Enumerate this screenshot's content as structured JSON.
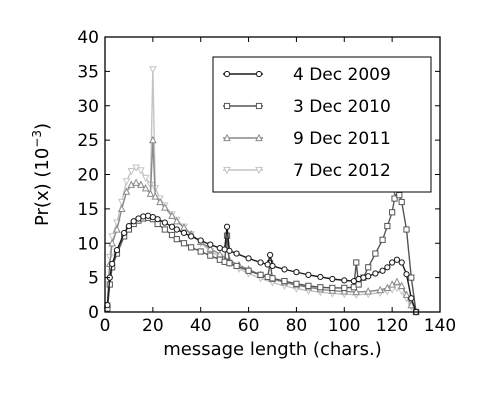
{
  "chart_data": {
    "type": "line",
    "xlabel": "message length (chars.)",
    "ylabel": "Pr(x) (10",
    "ylabel_exp": "−3",
    "xlim": [
      0,
      140
    ],
    "ylim": [
      0,
      40
    ],
    "xticks": [
      0,
      20,
      40,
      60,
      80,
      100,
      120,
      140
    ],
    "yticks": [
      0,
      5,
      10,
      15,
      20,
      25,
      30,
      35,
      40
    ],
    "grid": false,
    "legend_position": "top-right",
    "series": [
      {
        "name": "4 Dec 2009",
        "color": "#1a1a1a",
        "marker": "circle",
        "x": [
          1,
          2,
          3,
          5,
          8,
          10,
          12,
          14,
          16,
          18,
          20,
          22,
          25,
          28,
          30,
          33,
          36,
          40,
          44,
          48,
          50,
          51,
          52,
          55,
          60,
          65,
          68,
          69,
          70,
          75,
          80,
          85,
          90,
          95,
          100,
          104,
          106,
          108,
          110,
          113,
          116,
          118,
          120,
          122,
          124,
          126,
          128,
          130
        ],
        "y": [
          1,
          5,
          7,
          9,
          11.5,
          12.5,
          13.2,
          13.6,
          13.9,
          14,
          13.8,
          13.5,
          13,
          12.4,
          12,
          11.5,
          11,
          10.4,
          9.8,
          9.3,
          9.1,
          12.4,
          8.9,
          8.5,
          7.8,
          7.2,
          6.9,
          8.3,
          6.7,
          6.2,
          5.8,
          5.4,
          5.1,
          4.8,
          4.6,
          4.5,
          4.8,
          5,
          5.2,
          5.6,
          6,
          6.5,
          7.2,
          7.6,
          7.2,
          5.5,
          2,
          0
        ]
      },
      {
        "name": "3 Dec 2010",
        "color": "#555555",
        "marker": "square",
        "x": [
          1,
          2,
          3,
          5,
          8,
          10,
          12,
          14,
          16,
          18,
          20,
          22,
          25,
          28,
          30,
          33,
          36,
          40,
          44,
          48,
          50,
          51,
          52,
          55,
          60,
          65,
          68,
          69,
          70,
          75,
          80,
          85,
          90,
          95,
          100,
          104,
          105,
          106,
          108,
          110,
          113,
          116,
          118,
          120,
          121,
          122,
          123,
          124,
          126,
          128,
          130
        ],
        "y": [
          0.5,
          4,
          6.5,
          8.5,
          11,
          12,
          12.8,
          13.3,
          13.6,
          13.7,
          13.5,
          12.8,
          12,
          11.2,
          10.6,
          10,
          9.4,
          8.8,
          8.2,
          7.6,
          7.3,
          11.1,
          7.1,
          6.7,
          6,
          5.4,
          5.1,
          7.1,
          4.9,
          4.5,
          4.1,
          3.8,
          3.6,
          3.5,
          3.5,
          3.6,
          7.2,
          4,
          5,
          6.5,
          8.5,
          10.5,
          12.5,
          14.5,
          16.5,
          17.5,
          17,
          16,
          12,
          5,
          0
        ]
      },
      {
        "name": "9 Dec 2011",
        "color": "#8a8a8a",
        "marker": "triangle-up",
        "x": [
          1,
          2,
          3,
          5,
          7,
          9,
          11,
          13,
          15,
          17,
          19,
          20,
          21,
          23,
          25,
          28,
          30,
          33,
          36,
          40,
          44,
          48,
          52,
          56,
          60,
          65,
          70,
          75,
          80,
          85,
          90,
          95,
          100,
          105,
          110,
          115,
          118,
          120,
          122,
          124,
          126,
          128,
          130
        ],
        "y": [
          1,
          7,
          10,
          12,
          15,
          17.5,
          18.5,
          18.8,
          18.5,
          18,
          17.2,
          25,
          16.8,
          16,
          15.2,
          14,
          13.2,
          12.3,
          11.3,
          10.2,
          9.2,
          8.4,
          7.5,
          6.8,
          6.2,
          5.4,
          4.8,
          4.3,
          3.9,
          3.6,
          3.3,
          3.1,
          3,
          2.9,
          3,
          3.2,
          3.5,
          4,
          4.4,
          3.8,
          2.5,
          1,
          0
        ]
      },
      {
        "name": "7 Dec 2012",
        "color": "#c4c4c4",
        "marker": "triangle-down",
        "x": [
          1,
          2,
          3,
          5,
          7,
          9,
          11,
          13,
          15,
          17,
          19,
          20,
          21,
          23,
          25,
          28,
          30,
          33,
          36,
          40,
          44,
          48,
          52,
          56,
          60,
          65,
          70,
          75,
          80,
          85,
          90,
          95,
          100,
          105,
          110,
          115,
          118,
          120,
          122,
          124,
          126,
          128,
          130
        ],
        "y": [
          1,
          8,
          11,
          13,
          16,
          19,
          20.5,
          21,
          20.6,
          19.5,
          18.5,
          35.3,
          18,
          16.5,
          15.5,
          14.2,
          13.4,
          12.4,
          11.3,
          10,
          8.9,
          8,
          7.1,
          6.3,
          5.6,
          4.9,
          4.3,
          3.8,
          3.4,
          3.1,
          2.9,
          2.7,
          2.6,
          2.5,
          2.6,
          2.8,
          3,
          3.3,
          3.5,
          3,
          2,
          0.8,
          0
        ]
      }
    ]
  }
}
